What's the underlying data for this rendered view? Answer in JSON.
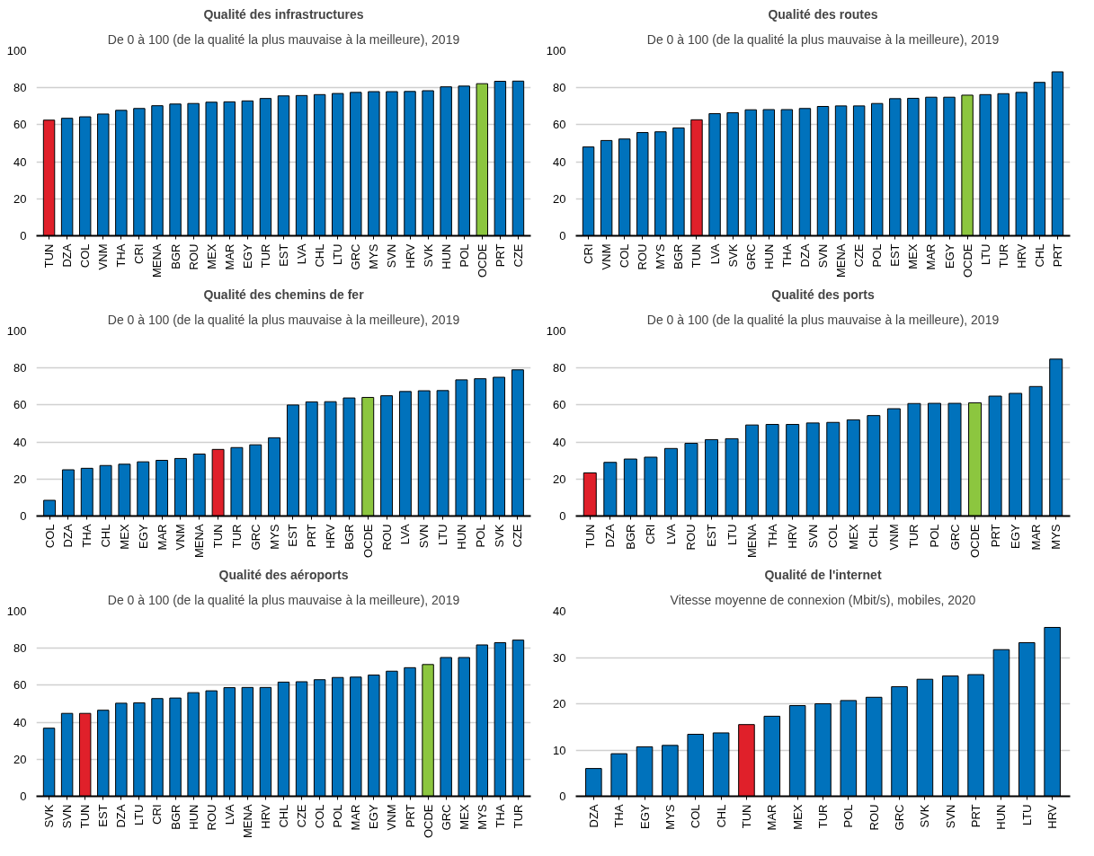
{
  "chart_data": [
    {
      "type": "bar",
      "title": "Qualité des infrastructures",
      "subtitle": "De 0 à 100 (de la qualité la plus mauvaise à la meilleure), 2019",
      "grid": "y",
      "ylim": [
        0,
        100
      ],
      "yticks": [
        0,
        20,
        40,
        60,
        80,
        100
      ],
      "categories": [
        "TUN",
        "DZA",
        "COL",
        "VNM",
        "THA",
        "CRI",
        "MENA",
        "BGR",
        "ROU",
        "MEX",
        "MAR",
        "EGY",
        "TUR",
        "EST",
        "LVA",
        "CHL",
        "LTU",
        "GRC",
        "MYS",
        "SVN",
        "HRV",
        "SVK",
        "HUN",
        "POL",
        "OCDE",
        "PRT",
        "CZE"
      ],
      "values": [
        62.5,
        63.5,
        64.3,
        65.8,
        67.8,
        68.8,
        70.3,
        71.2,
        71.5,
        72.2,
        72.4,
        72.9,
        74.2,
        75.6,
        75.8,
        76.3,
        76.9,
        77.5,
        77.9,
        77.9,
        78.0,
        78.4,
        80.5,
        80.9,
        82.2,
        83.5,
        83.6
      ],
      "colors": [
        "#e0202a",
        "#0072bc",
        "#0072bc",
        "#0072bc",
        "#0072bc",
        "#0072bc",
        "#0072bc",
        "#0072bc",
        "#0072bc",
        "#0072bc",
        "#0072bc",
        "#0072bc",
        "#0072bc",
        "#0072bc",
        "#0072bc",
        "#0072bc",
        "#0072bc",
        "#0072bc",
        "#0072bc",
        "#0072bc",
        "#0072bc",
        "#0072bc",
        "#0072bc",
        "#0072bc",
        "#8cc63f",
        "#0072bc",
        "#0072bc"
      ]
    },
    {
      "type": "bar",
      "title": "Qualité des routes",
      "subtitle": "De 0 à 100 (de la qualité la plus mauvaise à la meilleure), 2019",
      "grid": "y",
      "ylim": [
        0,
        100
      ],
      "yticks": [
        0,
        20,
        40,
        60,
        80,
        100
      ],
      "categories": [
        "CRI",
        "VNM",
        "COL",
        "ROU",
        "MYS",
        "BGR",
        "TUN",
        "LVA",
        "SVK",
        "GRC",
        "HUN",
        "THA",
        "DZA",
        "SVN",
        "MENA",
        "CZE",
        "POL",
        "EST",
        "MEX",
        "MAR",
        "EGY",
        "OCDE",
        "LTU",
        "TUR",
        "HRV",
        "CHL",
        "PRT"
      ],
      "values": [
        48,
        51.5,
        52.3,
        55.8,
        56.2,
        58.3,
        62.7,
        66,
        66.5,
        68.1,
        68.2,
        68.2,
        68.8,
        69.9,
        70.2,
        70.2,
        71.5,
        74.1,
        74.3,
        74.9,
        74.9,
        76,
        76.3,
        76.8,
        77.5,
        82.9,
        88.6
      ],
      "colors": [
        "#0072bc",
        "#0072bc",
        "#0072bc",
        "#0072bc",
        "#0072bc",
        "#0072bc",
        "#e0202a",
        "#0072bc",
        "#0072bc",
        "#0072bc",
        "#0072bc",
        "#0072bc",
        "#0072bc",
        "#0072bc",
        "#0072bc",
        "#0072bc",
        "#0072bc",
        "#0072bc",
        "#0072bc",
        "#0072bc",
        "#0072bc",
        "#8cc63f",
        "#0072bc",
        "#0072bc",
        "#0072bc",
        "#0072bc",
        "#0072bc"
      ]
    },
    {
      "type": "bar",
      "title": "Qualité des chemins de fer",
      "subtitle": "De 0 à 100 (de la qualité la plus mauvaise à la meilleure), 2019",
      "grid": "y",
      "ylim": [
        0,
        100
      ],
      "yticks": [
        0,
        20,
        40,
        60,
        80,
        100
      ],
      "categories": [
        "COL",
        "DZA",
        "THA",
        "CHL",
        "MEX",
        "EGY",
        "MAR",
        "VNM",
        "MENA",
        "TUN",
        "TUR",
        "GRC",
        "MYS",
        "EST",
        "PRT",
        "HRV",
        "BGR",
        "OCDE",
        "ROU",
        "LVA",
        "SVN",
        "LTU",
        "HUN",
        "POL",
        "SVK",
        "CZE"
      ],
      "values": [
        8.5,
        25,
        25.8,
        27.3,
        28,
        29.3,
        30.1,
        31.1,
        33.5,
        36,
        37,
        38.5,
        42.3,
        60,
        61.7,
        61.8,
        63.8,
        64.1,
        65,
        67.3,
        67.7,
        67.8,
        73.6,
        74.2,
        75,
        79
      ],
      "colors": [
        "#0072bc",
        "#0072bc",
        "#0072bc",
        "#0072bc",
        "#0072bc",
        "#0072bc",
        "#0072bc",
        "#0072bc",
        "#0072bc",
        "#e0202a",
        "#0072bc",
        "#0072bc",
        "#0072bc",
        "#0072bc",
        "#0072bc",
        "#0072bc",
        "#0072bc",
        "#8cc63f",
        "#0072bc",
        "#0072bc",
        "#0072bc",
        "#0072bc",
        "#0072bc",
        "#0072bc",
        "#0072bc",
        "#0072bc"
      ]
    },
    {
      "type": "bar",
      "title": "Qualité des ports",
      "subtitle": "De 0 à 100 (de la qualité la plus mauvaise à la meilleure), 2019",
      "grid": "y",
      "ylim": [
        0,
        100
      ],
      "yticks": [
        0,
        20,
        40,
        60,
        80,
        100
      ],
      "categories": [
        "TUN",
        "DZA",
        "BGR",
        "CRI",
        "LVA",
        "ROU",
        "EST",
        "LTU",
        "MENA",
        "THA",
        "HRV",
        "SVN",
        "COL",
        "MEX",
        "CHL",
        "VNM",
        "TUR",
        "POL",
        "GRC",
        "OCDE",
        "PRT",
        "EGY",
        "MAR",
        "MYS"
      ],
      "values": [
        23.3,
        29,
        30.8,
        31.8,
        36.5,
        39.3,
        41.3,
        41.8,
        49.2,
        49.5,
        49.5,
        50.3,
        50.6,
        52,
        54.3,
        58,
        60.8,
        60.9,
        60.9,
        61.2,
        64.8,
        66.3,
        70,
        84.8
      ],
      "colors": [
        "#e0202a",
        "#0072bc",
        "#0072bc",
        "#0072bc",
        "#0072bc",
        "#0072bc",
        "#0072bc",
        "#0072bc",
        "#0072bc",
        "#0072bc",
        "#0072bc",
        "#0072bc",
        "#0072bc",
        "#0072bc",
        "#0072bc",
        "#0072bc",
        "#0072bc",
        "#0072bc",
        "#0072bc",
        "#8cc63f",
        "#0072bc",
        "#0072bc",
        "#0072bc",
        "#0072bc"
      ]
    },
    {
      "type": "bar",
      "title": "Qualité des aéroports",
      "subtitle": "De 0 à 100 (de la qualité la plus mauvaise à la meilleure), 2019",
      "grid": "y",
      "ylim": [
        0,
        100
      ],
      "yticks": [
        0,
        20,
        40,
        60,
        80,
        100
      ],
      "categories": [
        "SVK",
        "SVN",
        "TUN",
        "EST",
        "DZA",
        "LTU",
        "CRI",
        "BGR",
        "HUN",
        "ROU",
        "LVA",
        "MENA",
        "HRV",
        "CHL",
        "CZE",
        "COL",
        "POL",
        "MAR",
        "EGY",
        "VNM",
        "PRT",
        "OCDE",
        "GRC",
        "MEX",
        "MYS",
        "THA",
        "TUR"
      ],
      "values": [
        36.8,
        44.8,
        44.8,
        46.5,
        50.3,
        50.5,
        52.8,
        53.1,
        56,
        57,
        58.7,
        58.8,
        58.8,
        61.7,
        61.9,
        63,
        64.2,
        64.4,
        65.5,
        67.6,
        69.5,
        71.2,
        75,
        75,
        81.8,
        83,
        84.4
      ],
      "colors": [
        "#0072bc",
        "#0072bc",
        "#e0202a",
        "#0072bc",
        "#0072bc",
        "#0072bc",
        "#0072bc",
        "#0072bc",
        "#0072bc",
        "#0072bc",
        "#0072bc",
        "#0072bc",
        "#0072bc",
        "#0072bc",
        "#0072bc",
        "#0072bc",
        "#0072bc",
        "#0072bc",
        "#0072bc",
        "#0072bc",
        "#0072bc",
        "#8cc63f",
        "#0072bc",
        "#0072bc",
        "#0072bc",
        "#0072bc",
        "#0072bc"
      ]
    },
    {
      "type": "bar",
      "title": "Qualité de l'internet",
      "subtitle": "Vitesse moyenne de connexion (Mbit/s), mobiles, 2020",
      "grid": "y",
      "ylim": [
        0,
        40
      ],
      "yticks": [
        0,
        10,
        20,
        30,
        40
      ],
      "categories": [
        "DZA",
        "THA",
        "EGY",
        "MYS",
        "COL",
        "CHL",
        "TUN",
        "MAR",
        "MEX",
        "TUR",
        "POL",
        "ROU",
        "GRC",
        "SVK",
        "SVN",
        "PRT",
        "HUN",
        "LTU",
        "HRV"
      ],
      "values": [
        6,
        9.2,
        10.7,
        11,
        13.4,
        13.7,
        15.5,
        17.3,
        19.6,
        20,
        20.7,
        21.4,
        23.7,
        25.3,
        26,
        26.3,
        31.7,
        33.2,
        36.5
      ],
      "colors": [
        "#0072bc",
        "#0072bc",
        "#0072bc",
        "#0072bc",
        "#0072bc",
        "#0072bc",
        "#e0202a",
        "#0072bc",
        "#0072bc",
        "#0072bc",
        "#0072bc",
        "#0072bc",
        "#0072bc",
        "#0072bc",
        "#0072bc",
        "#0072bc",
        "#0072bc",
        "#0072bc",
        "#0072bc"
      ]
    }
  ]
}
